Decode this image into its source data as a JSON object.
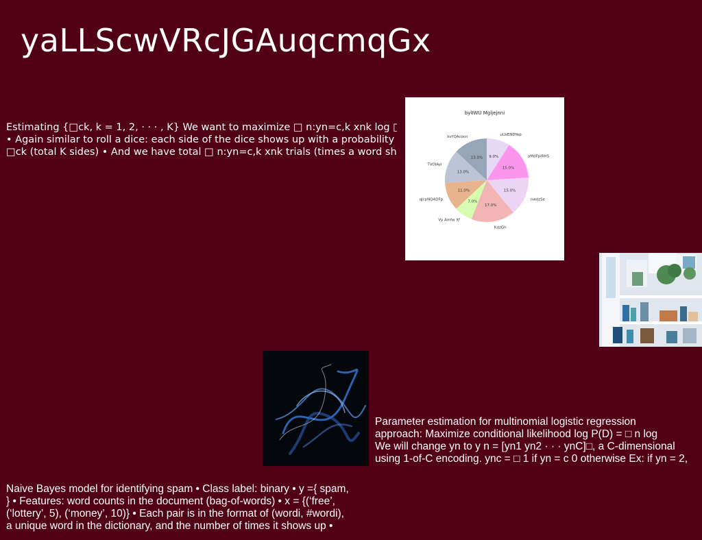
{
  "page": {
    "title": "yaLLScwVRcJGAuqcmqGx",
    "background": "#520016"
  },
  "blocks": {
    "estimating": [
      "Estimating {□ck, k = 1, 2, · · · , K} We want to maximize □ n:yn=c,k xnk log □ck",
      "• Again similar to roll a dice: each side of the dice shows up with a probability",
      "□ck (total K sides) • And we have total □ n:yn=c,k xnk trials (times a word shows"
    ],
    "parameter": [
      "Parameter estimation for multinomial logistic regression",
      "approach: Maximize conditional likelihood log P(D) = □ n log",
      "We will change yn to y n = [yn1 yn2 · · · ynC]□, a C-dimensional",
      "using 1-of-C encoding. ync = □ 1 if yn = c 0 otherwise Ex: if yn = 2,"
    ],
    "naive_bayes": [
      "Naive Bayes model for identifying spam • Class label: binary • y ={ spam,",
      "} • Features: word counts in the document (bag-of-words) • x = {(‘free’,",
      "(‘lottery’, 5), (‘money’, 10)} • Each pair is in the format of (wordi, #wordi),",
      "a unique word in the dictionary, and the number of times it shows up •"
    ]
  },
  "chart_data": {
    "type": "pie",
    "title": "bylIWU Mgljejnni",
    "slices": [
      {
        "label": "uUsENDYep",
        "value": 9.0,
        "color": "#e6d9f7"
      },
      {
        "label": "aMdFpiRHS",
        "value": 15.0,
        "color": "#fc96ec"
      },
      {
        "label": "nwdzSe",
        "value": 15.0,
        "color": "#ecd4f5"
      },
      {
        "label": "KdzGh",
        "value": 17.0,
        "color": "#f3b4b4"
      },
      {
        "label": "Vy Amfw Xf",
        "value": 7.0,
        "color": "#d6fcb0"
      },
      {
        "label": "qjcpNQADFp",
        "value": 11.0,
        "color": "#e8b48e"
      },
      {
        "label": "TVOIAyl",
        "value": 13.0,
        "color": "#bcc4d6"
      },
      {
        "label": "xsYQAcocn",
        "value": 13.0,
        "color": "#97a6b6"
      }
    ],
    "start": "top",
    "direction": "clockwise"
  },
  "images": {
    "shelf_photo": "room-shelf-photo",
    "smoke_photo": "blue-smoke-photo"
  }
}
